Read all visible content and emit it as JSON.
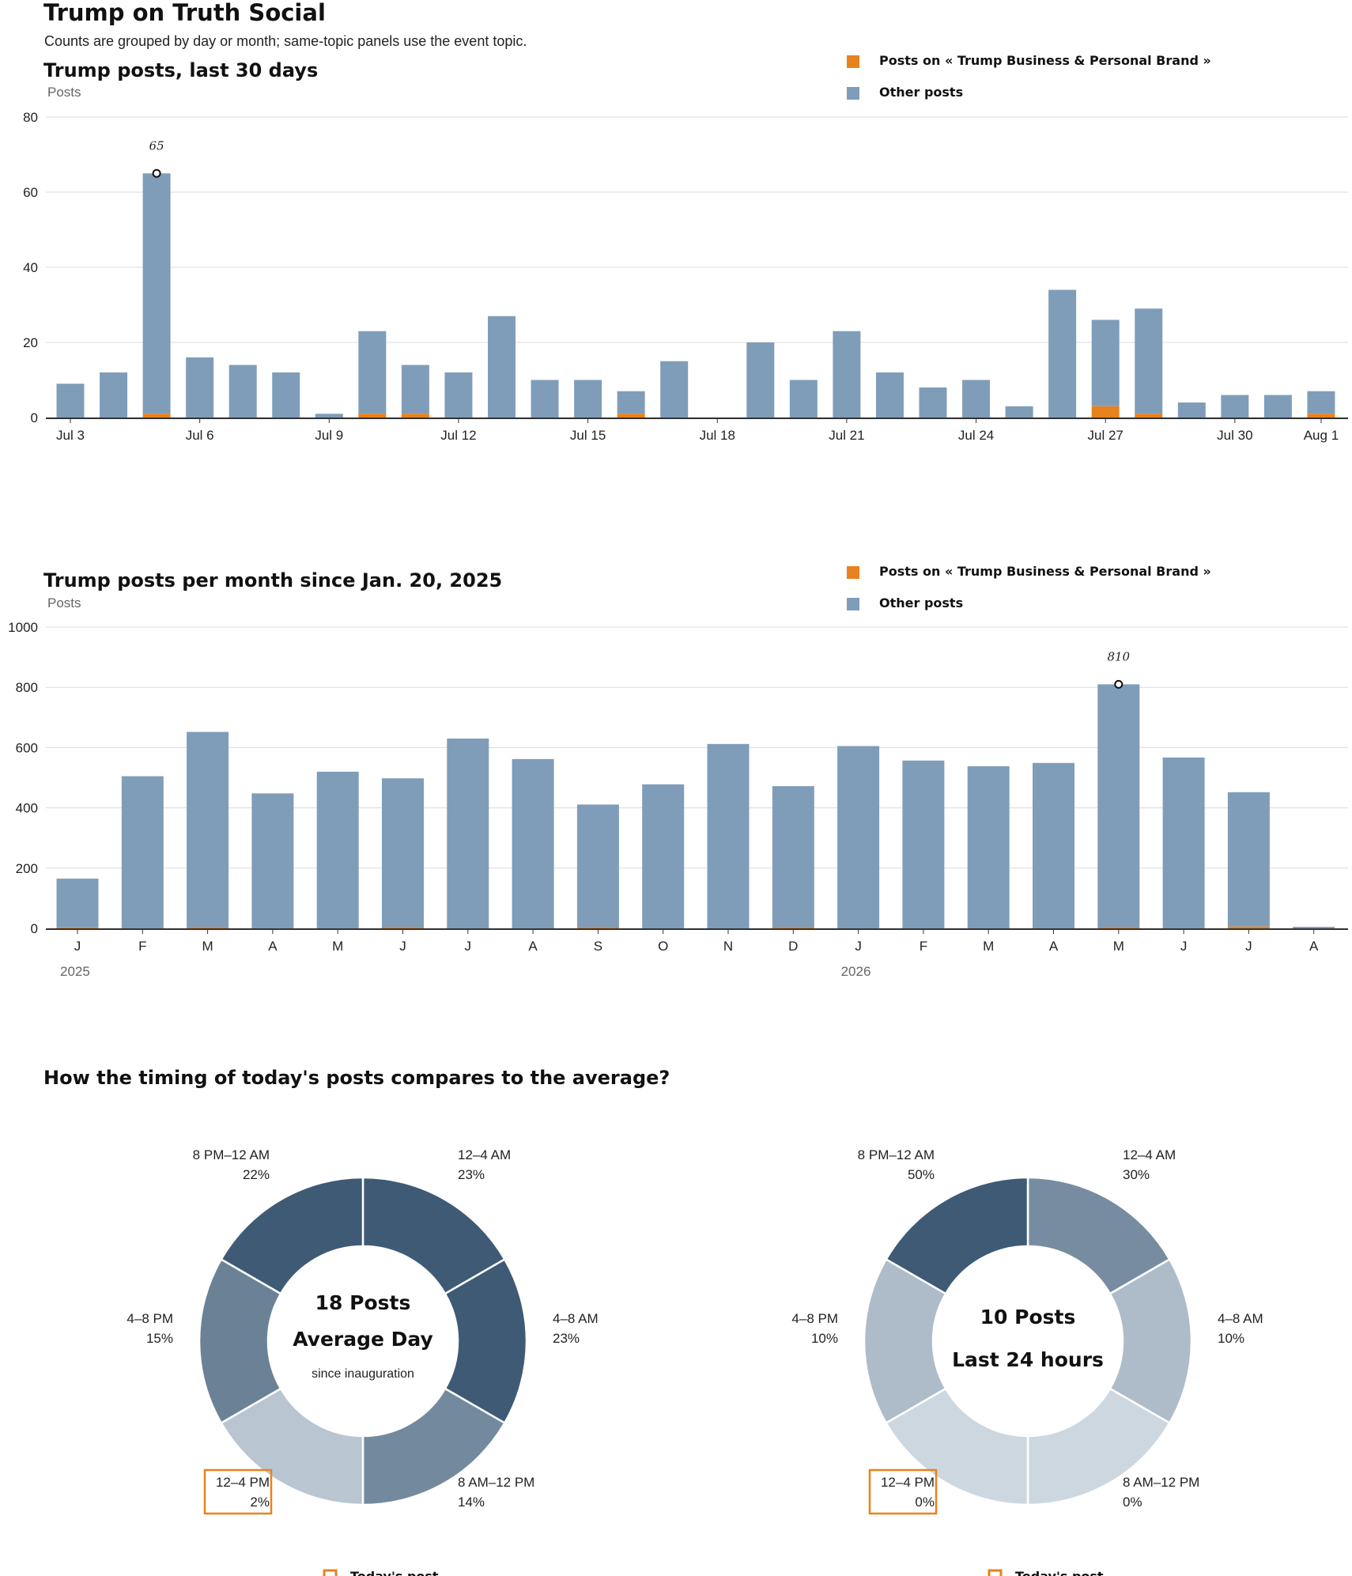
{
  "page": {
    "title": "Trump on Truth Social",
    "subtitle": "Counts are grouped by day or month; same-topic panels use the event topic."
  },
  "colors": {
    "topic": "#e8821e",
    "other": "#7f9db9",
    "grid": "#dcdcdc",
    "axis": "#333333"
  },
  "chart_data": [
    {
      "type": "bar",
      "title": "Trump posts, last 30 days",
      "ylabel": "Posts",
      "ylim": [
        0,
        80
      ],
      "yticks": [
        0,
        20,
        40,
        60,
        80
      ],
      "stacked": true,
      "legend": {
        "position": "top-right",
        "entries": [
          "Posts on « Trump Business & Personal Brand »",
          "Other posts"
        ]
      },
      "categories": [
        "Jul 3",
        "Jul 4",
        "Jul 5",
        "Jul 6",
        "Jul 7",
        "Jul 8",
        "Jul 9",
        "Jul 10",
        "Jul 11",
        "Jul 12",
        "Jul 13",
        "Jul 14",
        "Jul 15",
        "Jul 16",
        "Jul 17",
        "Jul 18",
        "Jul 19",
        "Jul 20",
        "Jul 21",
        "Jul 22",
        "Jul 23",
        "Jul 24",
        "Jul 25",
        "Jul 26",
        "Jul 27",
        "Jul 28",
        "Jul 29",
        "Jul 30",
        "Jul 31",
        "Aug 1"
      ],
      "tick_labels": [
        {
          "index": 0,
          "label": "Jul 3"
        },
        {
          "index": 3,
          "label": "Jul 6"
        },
        {
          "index": 6,
          "label": "Jul 9"
        },
        {
          "index": 9,
          "label": "Jul 12"
        },
        {
          "index": 12,
          "label": "Jul 15"
        },
        {
          "index": 15,
          "label": "Jul 18"
        },
        {
          "index": 18,
          "label": "Jul 21"
        },
        {
          "index": 21,
          "label": "Jul 24"
        },
        {
          "index": 24,
          "label": "Jul 27"
        },
        {
          "index": 27,
          "label": "Jul 30"
        },
        {
          "index": 29,
          "label": "Aug 1"
        }
      ],
      "series": [
        {
          "name": "Posts on « Trump Business & Personal Brand »",
          "values": [
            0,
            0,
            1,
            0,
            0,
            0,
            0,
            1,
            1,
            0,
            0,
            0,
            0,
            1,
            0,
            0,
            0,
            0,
            0,
            0,
            0,
            0,
            0,
            0,
            3,
            1,
            0,
            0,
            0,
            1
          ]
        },
        {
          "name": "Other posts",
          "values": [
            9,
            12,
            64,
            16,
            14,
            12,
            1,
            22,
            13,
            12,
            27,
            10,
            10,
            6,
            15,
            0,
            20,
            10,
            23,
            12,
            8,
            10,
            3,
            34,
            23,
            28,
            4,
            6,
            6,
            6
          ]
        }
      ],
      "totals": [
        9,
        12,
        65,
        16,
        14,
        12,
        1,
        23,
        14,
        12,
        27,
        10,
        10,
        7,
        15,
        0,
        20,
        10,
        23,
        12,
        8,
        10,
        3,
        34,
        26,
        29,
        4,
        6,
        6,
        7
      ],
      "annotations": [
        {
          "index": 2,
          "label": "65"
        }
      ]
    },
    {
      "type": "bar",
      "title": "Trump posts per month since Jan. 20, 2025",
      "ylabel": "Posts",
      "ylim": [
        0,
        1000
      ],
      "yticks": [
        0,
        200,
        400,
        600,
        800,
        1000
      ],
      "stacked": true,
      "legend": {
        "position": "top-right",
        "entries": [
          "Posts on « Trump Business & Personal Brand »",
          "Other posts"
        ]
      },
      "categories": [
        "J",
        "F",
        "M",
        "A",
        "M",
        "J",
        "J",
        "A",
        "S",
        "O",
        "N",
        "D",
        "J",
        "F",
        "M",
        "A",
        "M",
        "J",
        "J",
        "A"
      ],
      "year_labels": [
        {
          "index": 0,
          "label": "2025"
        },
        {
          "index": 12,
          "label": "2026"
        }
      ],
      "series": [
        {
          "name": "Posts on « Trump Business & Personal Brand »",
          "values": [
            3,
            0,
            4,
            0,
            0,
            4,
            0,
            0,
            4,
            0,
            0,
            4,
            0,
            0,
            0,
            0,
            4,
            0,
            6,
            0
          ]
        },
        {
          "name": "Other posts",
          "values": [
            162,
            505,
            648,
            448,
            520,
            494,
            630,
            562,
            407,
            478,
            612,
            468,
            605,
            557,
            538,
            549,
            806,
            567,
            446,
            5
          ]
        }
      ],
      "totals": [
        165,
        505,
        652,
        448,
        520,
        498,
        630,
        562,
        411,
        478,
        612,
        472,
        605,
        557,
        538,
        549,
        810,
        567,
        452,
        5
      ],
      "annotations": [
        {
          "index": 16,
          "label": "810"
        }
      ]
    },
    {
      "type": "pie",
      "title": "How the timing of today's posts compares to the average?",
      "center_lines": [
        "18 Posts",
        "Average Day",
        "since inauguration"
      ],
      "slices": [
        {
          "label": "12–4 AM",
          "pct": "23%",
          "color": "#3e5a75"
        },
        {
          "label": "4–8 AM",
          "pct": "23%",
          "color": "#3e5a75"
        },
        {
          "label": "8 AM–12 PM",
          "pct": "14%",
          "color": "#73899e"
        },
        {
          "label": "12–4 PM",
          "pct": "2%",
          "color": "#b9c6d2",
          "highlight": true
        },
        {
          "label": "4–8 PM",
          "pct": "15%",
          "color": "#6b8296"
        },
        {
          "label": "8 PM–12 AM",
          "pct": "22%",
          "color": "#3e5a75"
        }
      ],
      "legend": "Today's post"
    },
    {
      "type": "pie",
      "center_lines": [
        "10 Posts",
        "Last 24 hours"
      ],
      "slices": [
        {
          "label": "12–4 AM",
          "pct": "30%",
          "color": "#778ca0"
        },
        {
          "label": "4–8 AM",
          "pct": "10%",
          "color": "#aebcc9"
        },
        {
          "label": "8 AM–12 PM",
          "pct": "0%",
          "color": "#cdd7e0"
        },
        {
          "label": "12–4 PM",
          "pct": "0%",
          "color": "#cdd7e0",
          "highlight": true
        },
        {
          "label": "4–8 PM",
          "pct": "10%",
          "color": "#aebcc9"
        },
        {
          "label": "8 PM–12 AM",
          "pct": "50%",
          "color": "#3e5a75"
        }
      ],
      "legend": "Today's post"
    }
  ]
}
